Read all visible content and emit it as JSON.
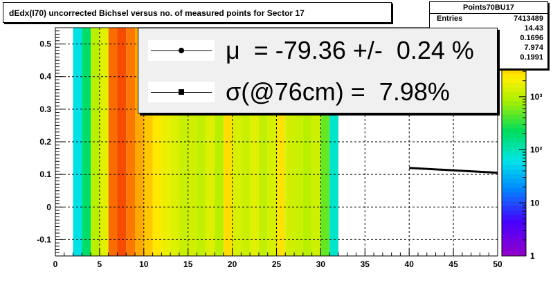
{
  "title": "dEdx(I70) uncorrected Bichsel versus no. of measured points for Sector 17",
  "stats": {
    "name": "Points70BU17",
    "rows": [
      {
        "label": "Entries",
        "value": "7413489"
      },
      {
        "label": "",
        "value": "14.43"
      },
      {
        "label": "",
        "value": "0.1696"
      },
      {
        "label": "",
        "value": "7.974"
      },
      {
        "label": "",
        "value": "0.1991"
      }
    ]
  },
  "legend": [
    {
      "marker": "circle",
      "text": "μ  = -79.36 +/-  0.24 %"
    },
    {
      "marker": "square",
      "text": "σ(@76cm) =  7.98%"
    }
  ],
  "chart_data": {
    "type": "heatmap",
    "x_range": [
      0,
      50
    ],
    "y_range": [
      -0.15,
      0.55
    ],
    "x_ticks": [
      "0",
      "5",
      "10",
      "15",
      "20",
      "25",
      "30",
      "35",
      "40",
      "45",
      "50"
    ],
    "y_ticks": [
      "-0.1",
      "0",
      "0.1",
      "0.2",
      "0.3",
      "0.4",
      "0.5"
    ],
    "z_scale": "log",
    "z_ticks": [
      "1",
      "10",
      "10²",
      "10³"
    ],
    "z_range": [
      1,
      20000
    ],
    "grid": true,
    "columns": [
      {
        "x0": 2,
        "x1": 3,
        "segments": [
          [
            -0.15,
            0.55,
            60
          ]
        ]
      },
      {
        "x0": 3,
        "x1": 4,
        "segments": [
          [
            -0.15,
            0.55,
            200
          ]
        ]
      },
      {
        "x0": 4,
        "x1": 5,
        "segments": [
          [
            -0.15,
            0.55,
            1000
          ]
        ]
      },
      {
        "x0": 5,
        "x1": 6,
        "segments": [
          [
            -0.15,
            0.55,
            1600
          ]
        ]
      },
      {
        "x0": 6,
        "x1": 7,
        "segments": [
          [
            -0.15,
            0.55,
            9000
          ]
        ]
      },
      {
        "x0": 7,
        "x1": 8,
        "segments": [
          [
            -0.15,
            0.55,
            12000
          ]
        ]
      },
      {
        "x0": 8,
        "x1": 9,
        "segments": [
          [
            -0.15,
            0.55,
            8000
          ]
        ]
      },
      {
        "x0": 9,
        "x1": 10,
        "segments": [
          [
            -0.15,
            0.55,
            5000
          ]
        ]
      },
      {
        "x0": 10,
        "x1": 11,
        "segments": [
          [
            -0.15,
            0.55,
            3500
          ]
        ]
      },
      {
        "x0": 11,
        "x1": 12,
        "segments": [
          [
            -0.15,
            0.55,
            2500
          ]
        ]
      },
      {
        "x0": 12,
        "x1": 13,
        "segments": [
          [
            -0.15,
            0.55,
            1800
          ]
        ]
      },
      {
        "x0": 13,
        "x1": 14,
        "segments": [
          [
            -0.15,
            0.55,
            1500
          ]
        ]
      },
      {
        "x0": 14,
        "x1": 15,
        "segments": [
          [
            -0.15,
            0.55,
            1200
          ]
        ]
      },
      {
        "x0": 15,
        "x1": 16,
        "segments": [
          [
            -0.15,
            0.55,
            1300
          ]
        ]
      },
      {
        "x0": 16,
        "x1": 17,
        "segments": [
          [
            -0.15,
            0.55,
            1100
          ]
        ]
      },
      {
        "x0": 17,
        "x1": 18,
        "segments": [
          [
            -0.15,
            0.55,
            1500
          ]
        ]
      },
      {
        "x0": 18,
        "x1": 19,
        "segments": [
          [
            -0.15,
            0.55,
            1000
          ]
        ]
      },
      {
        "x0": 19,
        "x1": 20,
        "segments": [
          [
            -0.15,
            0.55,
            2800
          ]
        ]
      },
      {
        "x0": 20,
        "x1": 21,
        "segments": [
          [
            -0.15,
            0.55,
            1400
          ]
        ]
      },
      {
        "x0": 21,
        "x1": 22,
        "segments": [
          [
            -0.15,
            0.55,
            1200
          ]
        ]
      },
      {
        "x0": 22,
        "x1": 23,
        "segments": [
          [
            -0.15,
            0.55,
            1600
          ]
        ]
      },
      {
        "x0": 23,
        "x1": 24,
        "segments": [
          [
            -0.15,
            0.55,
            1100
          ]
        ]
      },
      {
        "x0": 24,
        "x1": 25,
        "segments": [
          [
            -0.15,
            0.55,
            1400
          ]
        ]
      },
      {
        "x0": 25,
        "x1": 26,
        "segments": [
          [
            -0.15,
            0.55,
            2600
          ]
        ]
      },
      {
        "x0": 26,
        "x1": 27,
        "segments": [
          [
            -0.15,
            0.55,
            1300
          ]
        ]
      },
      {
        "x0": 27,
        "x1": 28,
        "segments": [
          [
            -0.15,
            0.55,
            1200
          ]
        ]
      },
      {
        "x0": 28,
        "x1": 29,
        "segments": [
          [
            -0.15,
            0.55,
            1000
          ]
        ]
      },
      {
        "x0": 29,
        "x1": 30,
        "segments": [
          [
            -0.15,
            0.55,
            1300
          ]
        ]
      },
      {
        "x0": 30,
        "x1": 31,
        "segments": [
          [
            -0.15,
            0.55,
            500
          ]
        ]
      },
      {
        "x0": 31,
        "x1": 32,
        "segments": [
          [
            -0.15,
            0.55,
            80
          ]
        ]
      }
    ],
    "series": [
      {
        "type": "line",
        "points": [
          [
            40,
            0.12
          ],
          [
            50,
            0.105
          ]
        ]
      }
    ]
  }
}
